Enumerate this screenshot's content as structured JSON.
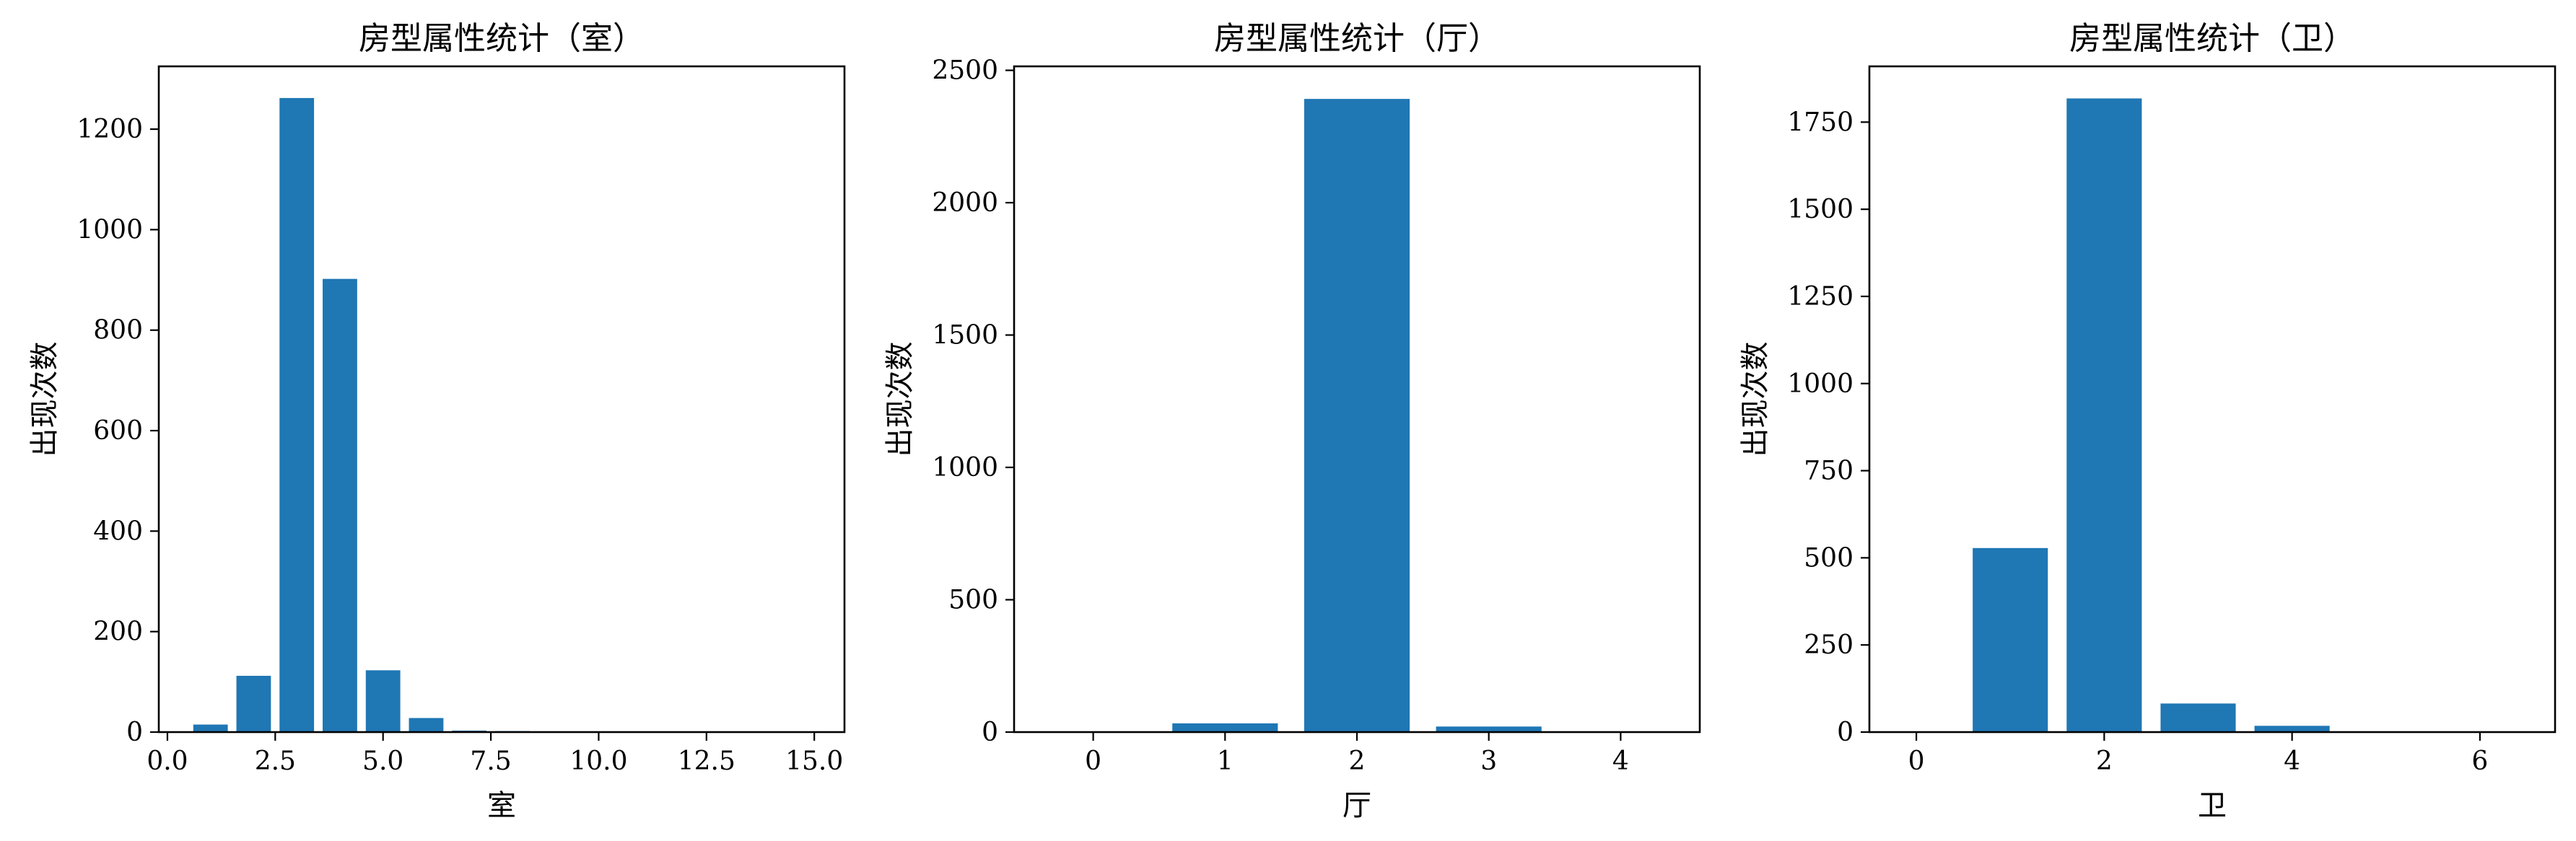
{
  "chart_data": [
    {
      "type": "bar",
      "title": "房型属性统计（室）",
      "xlabel": "室",
      "ylabel": "出现次数",
      "xlim": [
        -0.2,
        15.7
      ],
      "ylim": [
        0,
        1325
      ],
      "xticks": [
        0.0,
        2.5,
        5.0,
        7.5,
        10.0,
        12.5,
        15.0
      ],
      "xtick_labels": [
        "0.0",
        "2.5",
        "5.0",
        "7.5",
        "10.0",
        "12.5",
        "15.0"
      ],
      "yticks": [
        0,
        200,
        400,
        600,
        800,
        1000,
        1200
      ],
      "ytick_labels": [
        "0",
        "200",
        "400",
        "600",
        "800",
        "1000",
        "1200"
      ],
      "bar_width": 0.8,
      "categories": [
        1,
        2,
        3,
        4,
        5,
        6,
        7,
        8,
        9,
        10,
        11,
        12,
        13,
        14,
        15
      ],
      "values": [
        15,
        112,
        1262,
        902,
        123,
        28,
        3,
        2,
        1,
        1,
        0,
        0,
        0,
        0,
        0
      ],
      "color": "#1f77b4",
      "grid": false
    },
    {
      "type": "bar",
      "title": "房型属性统计（厅）",
      "xlabel": "厅",
      "ylabel": "出现次数",
      "xlim": [
        -0.6,
        4.6
      ],
      "ylim": [
        0,
        2515
      ],
      "xticks": [
        0,
        1,
        2,
        3,
        4
      ],
      "xtick_labels": [
        "0",
        "1",
        "2",
        "3",
        "4"
      ],
      "yticks": [
        0,
        500,
        1000,
        1500,
        2000,
        2500
      ],
      "ytick_labels": [
        "0",
        "500",
        "1000",
        "1500",
        "2000",
        "2500"
      ],
      "bar_width": 0.8,
      "categories": [
        0,
        1,
        2,
        3,
        4
      ],
      "values": [
        2,
        33,
        2392,
        21,
        2
      ],
      "color": "#1f77b4",
      "grid": false
    },
    {
      "type": "bar",
      "title": "房型属性统计（卫）",
      "xlabel": "卫",
      "ylabel": "出现次数",
      "xlim": [
        -0.5,
        6.8
      ],
      "ylim": [
        0,
        1910
      ],
      "xticks": [
        0,
        2,
        4,
        6
      ],
      "xtick_labels": [
        "0",
        "2",
        "4",
        "6"
      ],
      "yticks": [
        0,
        250,
        500,
        750,
        1000,
        1250,
        1500,
        1750
      ],
      "ytick_labels": [
        "0",
        "250",
        "500",
        "750",
        "1000",
        "1250",
        "1500",
        "1750"
      ],
      "bar_width": 0.8,
      "categories": [
        0,
        1,
        2,
        3,
        4,
        5,
        6
      ],
      "values": [
        1,
        528,
        1818,
        82,
        18,
        1,
        1
      ],
      "color": "#1f77b4",
      "grid": false
    }
  ]
}
